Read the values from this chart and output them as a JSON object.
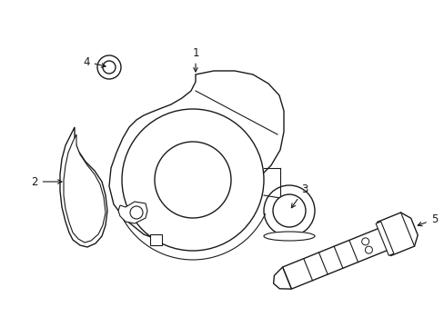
{
  "background_color": "#ffffff",
  "line_color": "#1a1a1a",
  "line_width": 1.0,
  "fig_w": 4.89,
  "fig_h": 3.6,
  "dpi": 100
}
